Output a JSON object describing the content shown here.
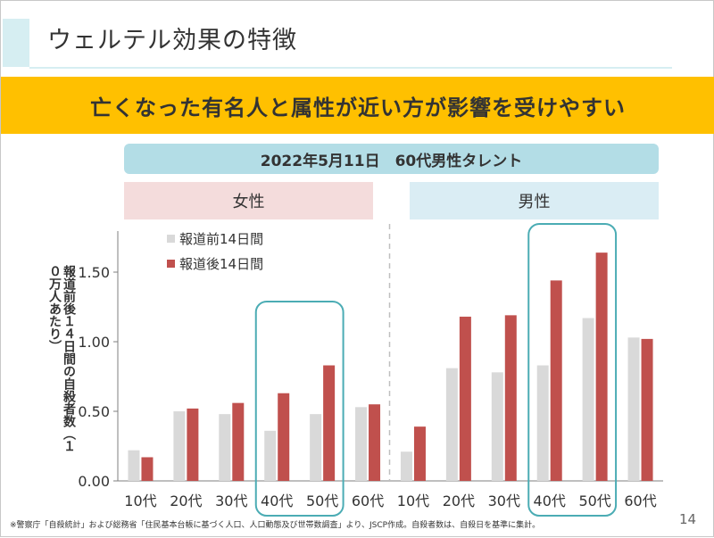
{
  "slide": {
    "title": "ウェルテル効果の特徴",
    "banner": "亡くなった有名人と属性が近い方が影響を受けやすい",
    "subhead": "2022年5月11日　60代男性タレント",
    "group_female": "女性",
    "group_male": "男性",
    "footnote": "※警察庁「自殺統計」および総務省「住民基本台帳に基づく人口、人口動態及び世帯数調査」より、JSCP作成。自殺者数は、自殺日を基準に集計。",
    "page_number": "14"
  },
  "chart_data": {
    "type": "bar",
    "ylabel": "報道前後１４日間の自殺者数（１０万人あたり）",
    "ylim": [
      0,
      1.8
    ],
    "yticks": [
      "0.00",
      "0.50",
      "1.00",
      "1.50"
    ],
    "ytick_values": [
      0,
      0.5,
      1.0,
      1.5
    ],
    "categories": [
      "10代",
      "20代",
      "30代",
      "40代",
      "50代",
      "60代",
      "10代",
      "20代",
      "30代",
      "40代",
      "50代",
      "60代"
    ],
    "series": [
      {
        "name": "報道前14日間",
        "color": "#d9d9d9",
        "values": [
          0.22,
          0.5,
          0.48,
          0.36,
          0.48,
          0.53,
          0.21,
          0.81,
          0.78,
          0.83,
          1.17,
          1.03
        ]
      },
      {
        "name": "報道後14日間",
        "color": "#c0504d",
        "values": [
          0.17,
          0.52,
          0.56,
          0.63,
          0.83,
          0.55,
          0.39,
          1.18,
          1.19,
          1.44,
          1.64,
          1.02
        ]
      }
    ],
    "highlight_color": "#4bacb4"
  }
}
